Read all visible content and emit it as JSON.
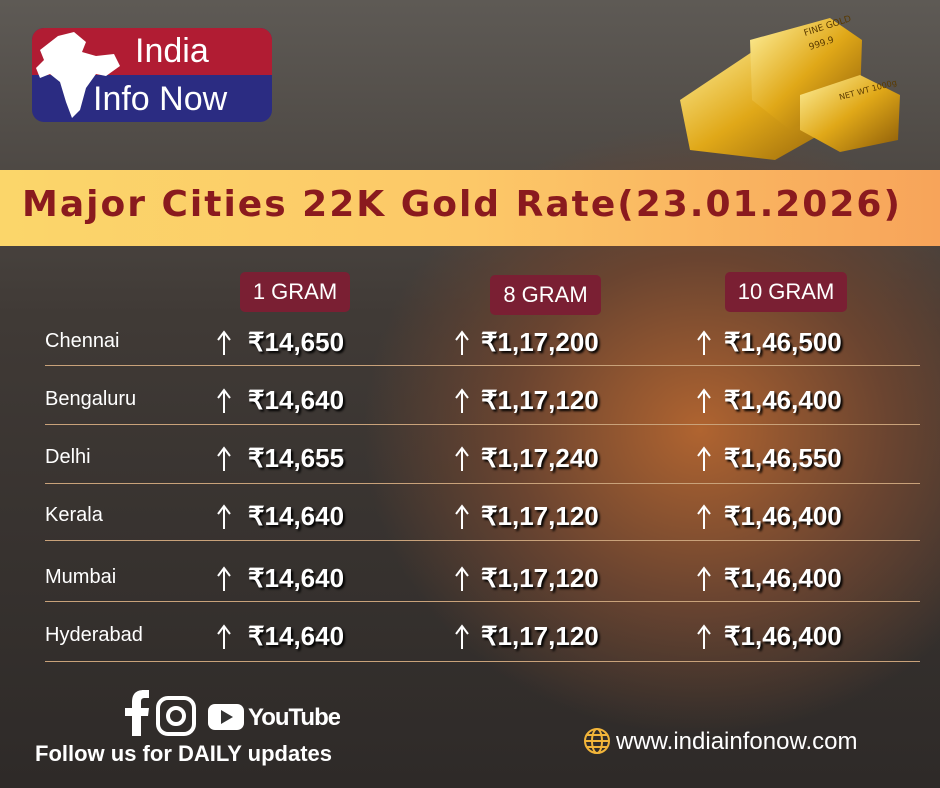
{
  "logo": {
    "line1": "India",
    "line2": "Info Now"
  },
  "gold_bar": {
    "texts": [
      "FINE GOLD",
      "999.9",
      "NET WT 1000g"
    ]
  },
  "title": "Major Cities 22K Gold Rate(23.01.2026)",
  "table": {
    "headers": [
      "1 GRAM",
      "8 GRAM",
      "10 GRAM"
    ],
    "rows": [
      [
        "Chennai",
        "₹14,650",
        "₹1,17,200",
        "₹1,46,500"
      ],
      [
        "Bengaluru",
        "₹14,640",
        "₹1,17,120",
        "₹1,46,400"
      ],
      [
        "Delhi",
        "₹14,655",
        "₹1,17,240",
        "₹1,46,550"
      ],
      [
        "Kerala",
        "₹14,640",
        "₹1,17,120",
        "₹1,46,400"
      ],
      [
        "Mumbai",
        "₹14,640",
        "₹1,17,120",
        "₹1,46,400"
      ],
      [
        "Hyderabad",
        "₹14,640",
        "₹1,17,120",
        "₹1,46,400"
      ]
    ]
  },
  "footer": {
    "youtube": "YouTube",
    "follow": "Follow  us for DAILY updates",
    "website": "www.indiainfonow.com"
  }
}
